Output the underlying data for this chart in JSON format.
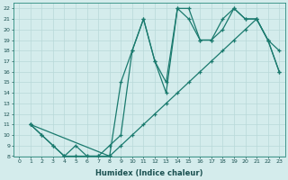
{
  "xlabel": "Humidex (Indice chaleur)",
  "bg_color": "#d4ecec",
  "grid_color": "#c0dede",
  "line_color": "#1a7a6e",
  "xlim": [
    -0.5,
    23.5
  ],
  "ylim": [
    8,
    22.5
  ],
  "xticks": [
    0,
    1,
    2,
    3,
    4,
    5,
    6,
    7,
    8,
    9,
    10,
    11,
    12,
    13,
    14,
    15,
    16,
    17,
    18,
    19,
    20,
    21,
    22,
    23
  ],
  "yticks": [
    8,
    9,
    10,
    11,
    12,
    13,
    14,
    15,
    16,
    17,
    18,
    19,
    20,
    21,
    22
  ],
  "curves": [
    {
      "x": [
        1,
        2,
        3,
        4,
        5,
        6,
        7,
        8,
        9,
        10,
        11,
        12,
        13,
        14,
        15,
        16,
        17,
        18,
        19,
        20,
        21,
        22,
        23
      ],
      "y": [
        11,
        10,
        9,
        8,
        8,
        8,
        8,
        8,
        9,
        10,
        11,
        12,
        13,
        14,
        15,
        16,
        17,
        18,
        19,
        20,
        21,
        19,
        16
      ]
    },
    {
      "x": [
        1,
        2,
        3,
        4,
        5,
        6,
        7,
        8,
        9,
        10,
        11,
        12,
        13,
        14,
        15,
        16,
        17,
        18,
        19,
        20,
        21,
        22,
        23
      ],
      "y": [
        11,
        10,
        9,
        8,
        9,
        8,
        8,
        9,
        10,
        18,
        21,
        17,
        15,
        22,
        22,
        19,
        19,
        20,
        22,
        21,
        21,
        19,
        18
      ]
    },
    {
      "x": [
        1,
        8,
        9,
        10,
        11,
        12,
        13,
        14,
        15,
        16,
        17,
        18,
        19,
        20,
        21,
        22,
        23
      ],
      "y": [
        11,
        8,
        15,
        18,
        21,
        17,
        14,
        22,
        21,
        19,
        19,
        21,
        22,
        21,
        21,
        19,
        16
      ]
    }
  ]
}
